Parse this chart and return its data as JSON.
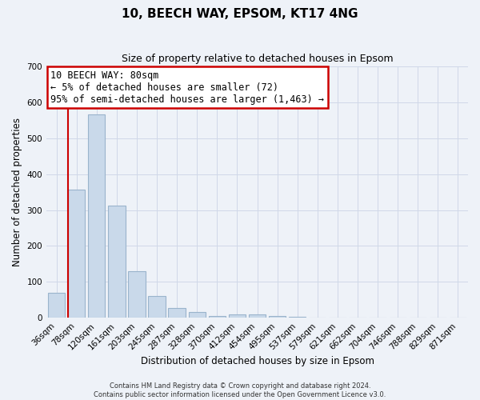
{
  "title": "10, BEECH WAY, EPSOM, KT17 4NG",
  "subtitle": "Size of property relative to detached houses in Epsom",
  "xlabel": "Distribution of detached houses by size in Epsom",
  "ylabel": "Number of detached properties",
  "bar_labels": [
    "36sqm",
    "78sqm",
    "120sqm",
    "161sqm",
    "203sqm",
    "245sqm",
    "287sqm",
    "328sqm",
    "370sqm",
    "412sqm",
    "454sqm",
    "495sqm",
    "537sqm",
    "579sqm",
    "621sqm",
    "662sqm",
    "704sqm",
    "746sqm",
    "788sqm",
    "829sqm",
    "871sqm"
  ],
  "bar_values": [
    70,
    357,
    567,
    312,
    130,
    60,
    27,
    15,
    6,
    9,
    10,
    5,
    3,
    0,
    0,
    0,
    0,
    0,
    0,
    0,
    0
  ],
  "bar_color": "#c9d9ea",
  "bar_edge_color": "#9ab4cc",
  "ylim": [
    0,
    700
  ],
  "yticks": [
    0,
    100,
    200,
    300,
    400,
    500,
    600,
    700
  ],
  "property_line_color": "#cc0000",
  "annotation_title": "10 BEECH WAY: 80sqm",
  "annotation_line1": "← 5% of detached houses are smaller (72)",
  "annotation_line2": "95% of semi-detached houses are larger (1,463) →",
  "annotation_box_color": "#ffffff",
  "annotation_box_edge": "#cc0000",
  "footer_line1": "Contains HM Land Registry data © Crown copyright and database right 2024.",
  "footer_line2": "Contains public sector information licensed under the Open Government Licence v3.0.",
  "background_color": "#eef2f8",
  "grid_color": "#d0d8e8",
  "title_fontsize": 11,
  "subtitle_fontsize": 9,
  "axis_label_fontsize": 8.5,
  "tick_fontsize": 7.5,
  "annotation_fontsize": 8.5,
  "footer_fontsize": 6
}
